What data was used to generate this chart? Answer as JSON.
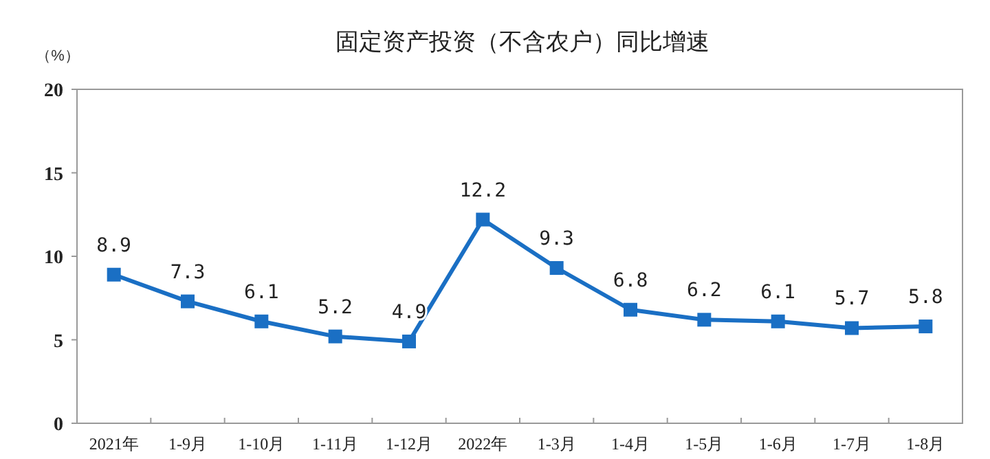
{
  "chart_data": {
    "type": "line",
    "title": "固定资产投资（不含农户）同比增速",
    "ylabel": "（%）",
    "categories": [
      "2021年",
      "1-9月",
      "1-10月",
      "1-11月",
      "1-12月",
      "2022年",
      "1-3月",
      "1-4月",
      "1-5月",
      "1-6月",
      "1-7月",
      "1-8月"
    ],
    "series": [
      {
        "color": "#1a6fc4",
        "values": [
          8.9,
          7.3,
          6.1,
          5.2,
          4.9,
          12.2,
          9.3,
          6.8,
          6.2,
          6.1,
          5.7,
          5.8
        ]
      }
    ],
    "ylim": [
      0,
      20
    ],
    "yticks": [
      0,
      5,
      10,
      15,
      20
    ],
    "marker": "square",
    "line_style": "solid",
    "data_labels": true,
    "grid": false
  }
}
